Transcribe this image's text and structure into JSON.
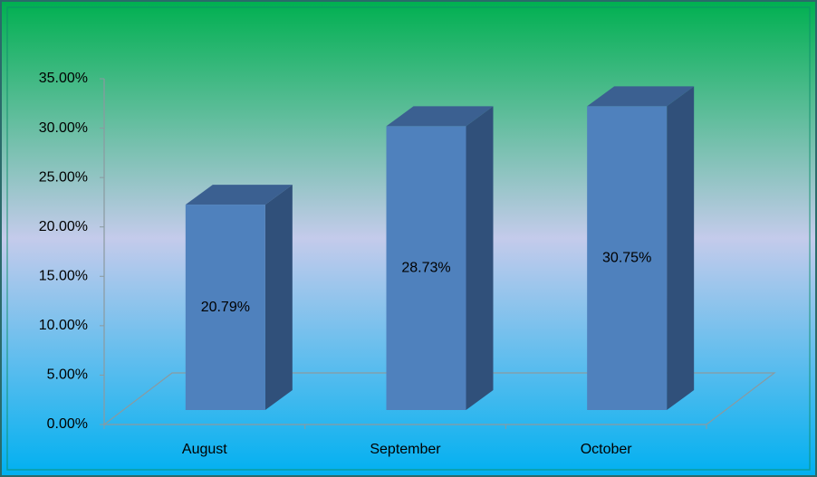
{
  "chart_data": {
    "type": "bar3d",
    "categories": [
      "August",
      "September",
      "October"
    ],
    "values": [
      20.79,
      28.73,
      30.75
    ],
    "value_labels": [
      "20.79%",
      "28.73%",
      "30.75%"
    ],
    "color": "#4f81bd",
    "ylim": [
      0,
      35
    ],
    "yticks": [
      {
        "value": 0,
        "label": "0.00%"
      },
      {
        "value": 5,
        "label": "5.00%"
      },
      {
        "value": 10,
        "label": "10.00%"
      },
      {
        "value": 15,
        "label": "15.00%"
      },
      {
        "value": 20,
        "label": "20.00%"
      },
      {
        "value": 25,
        "label": "25.00%"
      },
      {
        "value": 30,
        "label": "30.00%"
      },
      {
        "value": 35,
        "label": "35.00%"
      }
    ],
    "grid": false
  }
}
